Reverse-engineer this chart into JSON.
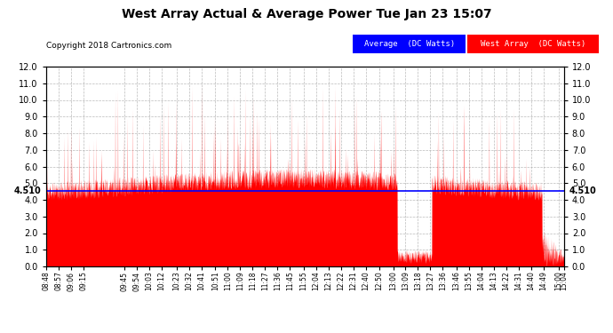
{
  "title": "West Array Actual & Average Power Tue Jan 23 15:07",
  "copyright": "Copyright 2018 Cartronics.com",
  "legend_avg": "Average  (DC Watts)",
  "legend_west": "West Array  (DC Watts)",
  "avg_value": 4.51,
  "avg_label": "4.510",
  "ymin": 0.0,
  "ymax": 12.0,
  "yticks": [
    0.0,
    1.0,
    2.0,
    3.0,
    4.0,
    5.0,
    6.0,
    7.0,
    8.0,
    9.0,
    10.0,
    11.0,
    12.0
  ],
  "bg_color": "#ffffff",
  "plot_bg_color": "#ffffff",
  "grid_color": "#aaaaaa",
  "red_color": "#ff0000",
  "blue_color": "#0000ff",
  "title_color": "#000000",
  "x_labels": [
    "08:48",
    "08:57",
    "09:06",
    "09:15",
    "09:45",
    "09:54",
    "10:03",
    "10:12",
    "10:23",
    "10:32",
    "10:41",
    "10:51",
    "11:00",
    "11:09",
    "11:18",
    "11:27",
    "11:36",
    "11:45",
    "11:55",
    "12:04",
    "12:13",
    "12:22",
    "12:31",
    "12:40",
    "12:50",
    "13:00",
    "13:09",
    "13:18",
    "13:27",
    "13:36",
    "13:46",
    "13:55",
    "14:04",
    "14:13",
    "14:22",
    "14:31",
    "14:40",
    "14:49",
    "15:00",
    "15:04"
  ]
}
